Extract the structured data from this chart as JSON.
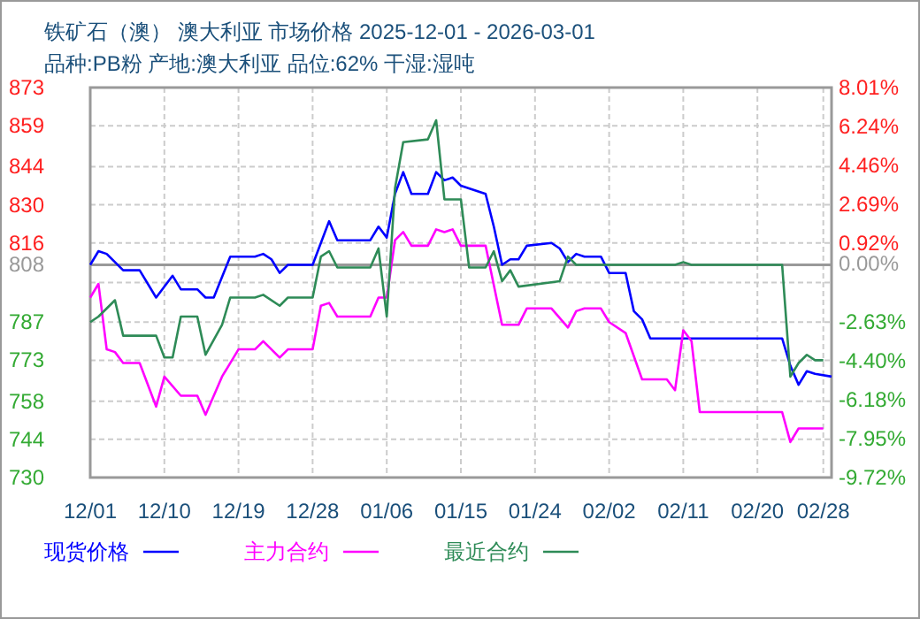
{
  "chart_data": {
    "type": "line",
    "title": "铁矿石（澳） 澳大利亚 市场价格 2025-12-01 - 2026-03-01",
    "subtitle": "品种:PB粉 产地:澳大利亚 品位:62% 干湿:湿吨",
    "xlim": [
      "2025-12-01",
      "2026-03-01"
    ],
    "xticks": [
      {
        "value": "2025-12-01",
        "label": "12/01"
      },
      {
        "value": "2025-12-10",
        "label": "12/10"
      },
      {
        "value": "2025-12-19",
        "label": "12/19"
      },
      {
        "value": "2025-12-28",
        "label": "12/28"
      },
      {
        "value": "2026-01-06",
        "label": "01/06"
      },
      {
        "value": "2026-01-15",
        "label": "01/15"
      },
      {
        "value": "2026-01-24",
        "label": "01/24"
      },
      {
        "value": "2026-02-02",
        "label": "02/02"
      },
      {
        "value": "2026-02-11",
        "label": "02/11"
      },
      {
        "value": "2026-02-20",
        "label": "02/20"
      },
      {
        "value": "2026-02-28",
        "label": "02/28"
      }
    ],
    "ylim": [
      730,
      873
    ],
    "yticks": [
      730,
      744,
      758,
      773,
      787,
      {
        "value": 801.5,
        "label": null
      },
      816,
      830,
      844,
      859,
      873
    ],
    "y2lim": [
      -9.72,
      8.01
    ],
    "y2ticks": [
      {
        "value": -9.72,
        "label": "-9.72%"
      },
      {
        "value": -7.95,
        "label": "-7.95%"
      },
      {
        "value": -6.18,
        "label": "-6.18%"
      },
      {
        "value": -4.4,
        "label": "-4.40%"
      },
      {
        "value": -2.63,
        "label": "-2.63%"
      },
      {
        "value": 0,
        "label": "0.00%"
      },
      {
        "value": 0.92,
        "label": "0.92%"
      },
      {
        "value": 2.69,
        "label": "2.69%"
      },
      {
        "value": 4.46,
        "label": "4.46%"
      },
      {
        "value": 6.24,
        "label": "6.24%"
      },
      {
        "value": 8.01,
        "label": "8.01%"
      }
    ],
    "ref_lines": [
      {
        "axis": "y",
        "value": 808,
        "label": "808",
        "color": "#999999"
      }
    ],
    "grid": true,
    "legend": "bottom",
    "line_style": "solid",
    "series": [
      {
        "name": "现货价格",
        "color": "#0000ff",
        "x": [
          "2025-12-01",
          "2025-12-02",
          "2025-12-03",
          "2025-12-05",
          "2025-12-07",
          "2025-12-09",
          "2025-12-11",
          "2025-12-12",
          "2025-12-14",
          "2025-12-15",
          "2025-12-16",
          "2025-12-18",
          "2025-12-21",
          "2025-12-22",
          "2025-12-23",
          "2025-12-24",
          "2025-12-25",
          "2025-12-28",
          "2025-12-30",
          "2025-12-31",
          "2026-01-04",
          "2026-01-05",
          "2026-01-06",
          "2026-01-07",
          "2026-01-08",
          "2026-01-09",
          "2026-01-11",
          "2026-01-12",
          "2026-01-13",
          "2026-01-14",
          "2026-01-15",
          "2026-01-18",
          "2026-01-19",
          "2026-01-20",
          "2026-01-21",
          "2026-01-22",
          "2026-01-23",
          "2026-01-26",
          "2026-01-27",
          "2026-01-28",
          "2026-01-29",
          "2026-01-30",
          "2026-02-01",
          "2026-02-02",
          "2026-02-04",
          "2026-02-05",
          "2026-02-06",
          "2026-02-07",
          "2026-02-23",
          "2026-02-24",
          "2026-02-25",
          "2026-02-26",
          "2026-02-27",
          "2026-03-01"
        ],
        "values": [
          808,
          813,
          812,
          806,
          806,
          796,
          804,
          799,
          799,
          796,
          796,
          811,
          811,
          812,
          810,
          805,
          808,
          808,
          824,
          817,
          817,
          822,
          818,
          834,
          842,
          834,
          834,
          842,
          839,
          840,
          837,
          834,
          822,
          808,
          810,
          810,
          815,
          816,
          814,
          809,
          812,
          811,
          811,
          805,
          805,
          791,
          788,
          781,
          781,
          771,
          764,
          769,
          768,
          767
        ]
      },
      {
        "name": "主力合约",
        "color": "#ff00ff",
        "x": [
          "2025-12-01",
          "2025-12-02",
          "2025-12-03",
          "2025-12-04",
          "2025-12-05",
          "2025-12-07",
          "2025-12-09",
          "2025-12-10",
          "2025-12-12",
          "2025-12-14",
          "2025-12-15",
          "2025-12-17",
          "2025-12-19",
          "2025-12-21",
          "2025-12-22",
          "2025-12-24",
          "2025-12-25",
          "2025-12-28",
          "2025-12-29",
          "2025-12-30",
          "2025-12-31",
          "2026-01-04",
          "2026-01-05",
          "2026-01-06",
          "2026-01-07",
          "2026-01-08",
          "2026-01-09",
          "2026-01-11",
          "2026-01-12",
          "2026-01-13",
          "2026-01-14",
          "2026-01-15",
          "2026-01-18",
          "2026-01-20",
          "2026-01-21",
          "2026-01-22",
          "2026-01-23",
          "2026-01-26",
          "2026-01-28",
          "2026-01-29",
          "2026-01-30",
          "2026-02-01",
          "2026-02-02",
          "2026-02-04",
          "2026-02-06",
          "2026-02-09",
          "2026-02-10",
          "2026-02-11",
          "2026-02-12",
          "2026-02-13",
          "2026-02-23",
          "2026-02-24",
          "2026-02-25",
          "2026-02-27",
          "2026-02-28"
        ],
        "values": [
          796,
          801,
          777,
          776,
          772,
          772,
          756,
          767,
          760,
          760,
          753,
          767,
          777,
          777,
          780,
          774,
          777,
          777,
          793,
          794,
          789,
          789,
          796,
          796,
          817,
          820,
          815,
          815,
          821,
          820,
          821,
          815,
          815,
          786,
          786,
          786,
          792,
          792,
          785,
          791,
          792,
          792,
          787,
          783,
          766,
          766,
          762,
          784,
          780,
          754,
          754,
          743,
          748,
          748,
          748
        ]
      },
      {
        "name": "最近合约",
        "color": "#2e8b57",
        "x": [
          "2025-12-01",
          "2025-12-02",
          "2025-12-04",
          "2025-12-05",
          "2025-12-09",
          "2025-12-10",
          "2025-12-11",
          "2025-12-12",
          "2025-12-14",
          "2025-12-15",
          "2025-12-17",
          "2025-12-18",
          "2025-12-21",
          "2025-12-22",
          "2025-12-24",
          "2025-12-25",
          "2025-12-28",
          "2025-12-29",
          "2025-12-30",
          "2025-12-31",
          "2026-01-04",
          "2026-01-05",
          "2026-01-06",
          "2026-01-07",
          "2026-01-08",
          "2026-01-11",
          "2026-01-12",
          "2026-01-13",
          "2026-01-15",
          "2026-01-16",
          "2026-01-18",
          "2026-01-19",
          "2026-01-20",
          "2026-01-21",
          "2026-01-22",
          "2026-01-27",
          "2026-01-28",
          "2026-01-29",
          "2026-02-10",
          "2026-02-11",
          "2026-02-12",
          "2026-02-23",
          "2026-02-24",
          "2026-02-25",
          "2026-02-26",
          "2026-02-27",
          "2026-02-28"
        ],
        "values": [
          787,
          789,
          795,
          782,
          782,
          774,
          774,
          789,
          789,
          775,
          786,
          796,
          796,
          797,
          793,
          796,
          796,
          811,
          813,
          807,
          807,
          814,
          789,
          836,
          853,
          854,
          861,
          832,
          832,
          807,
          807,
          813,
          802,
          806,
          800,
          802,
          811,
          808,
          808,
          809,
          808,
          808,
          767,
          772,
          775,
          773,
          773
        ]
      }
    ]
  }
}
